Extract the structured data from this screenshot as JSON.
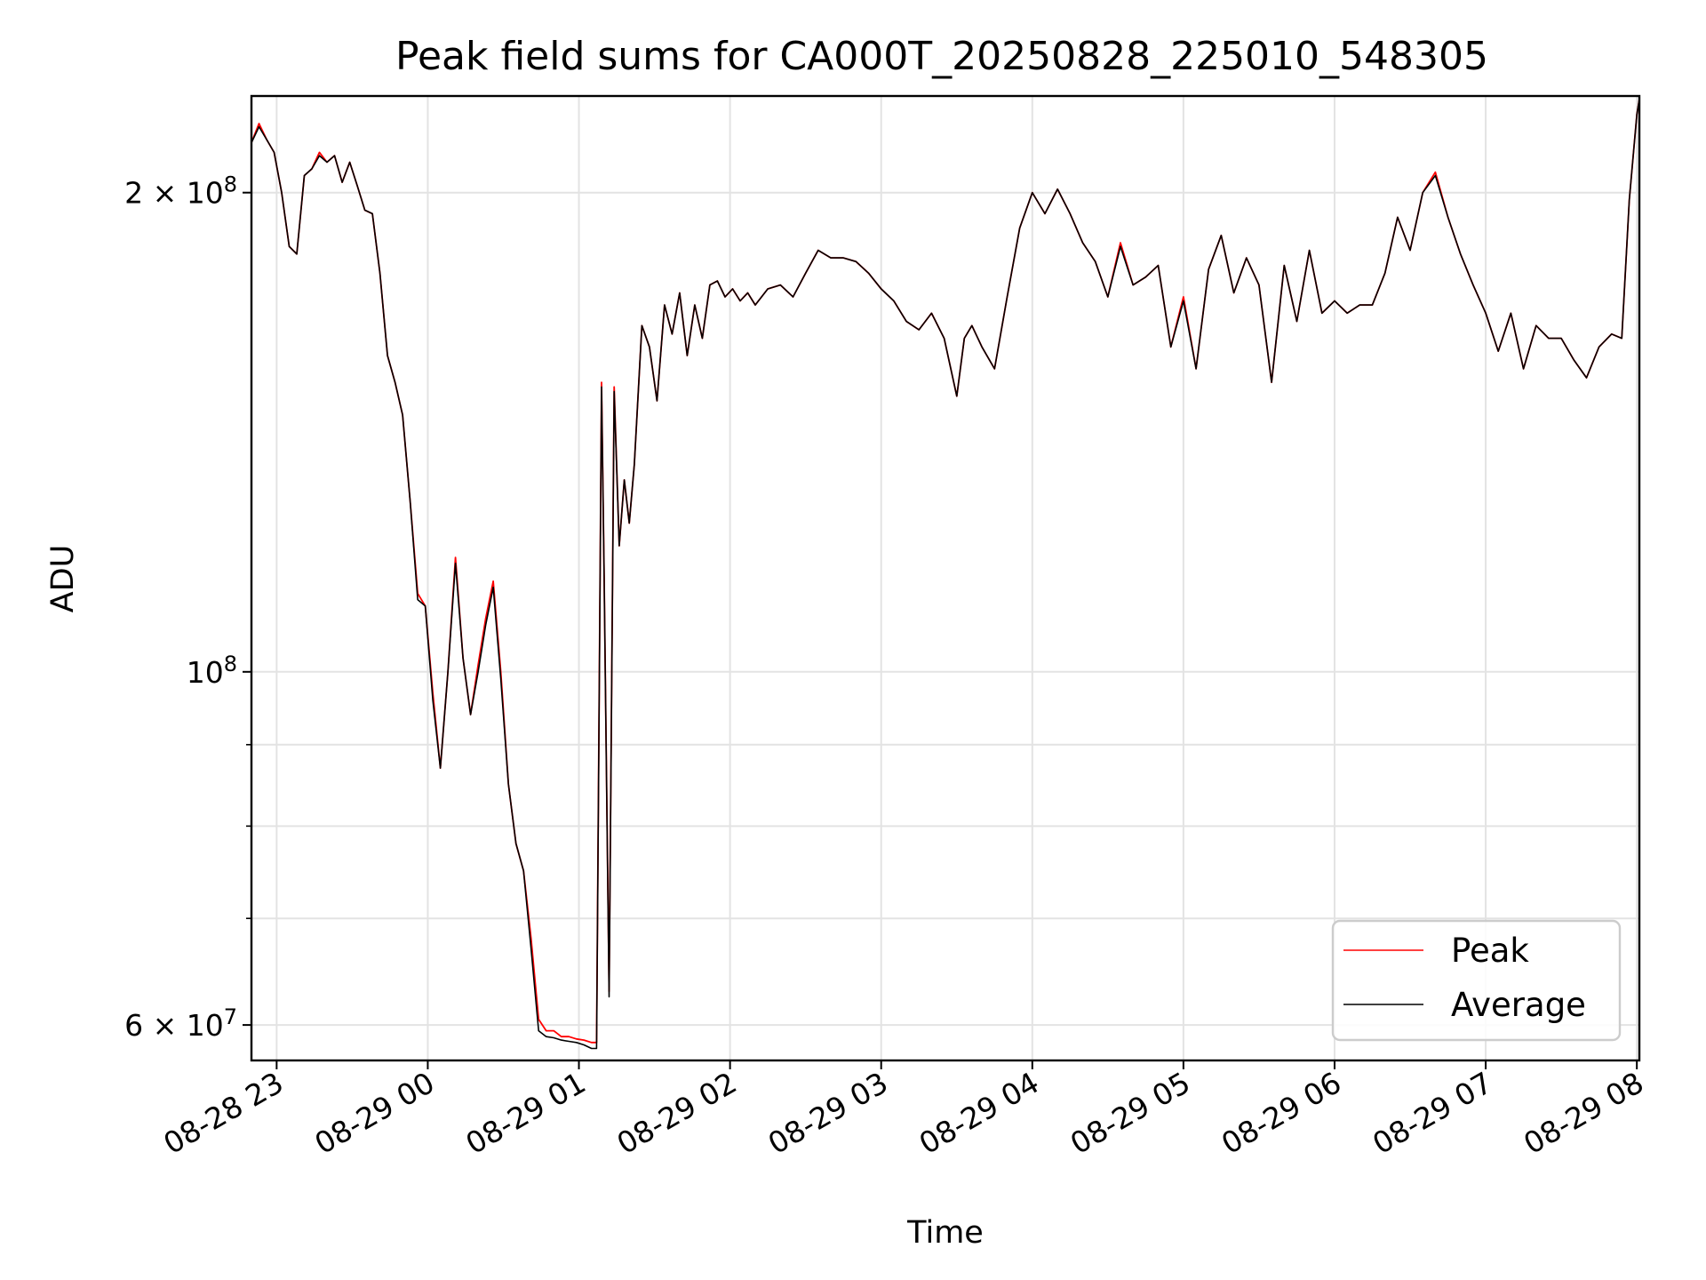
{
  "chart_data": {
    "type": "line",
    "title": "Peak field sums for CA000T_20250828_225010_548305",
    "xlabel": "Time",
    "ylabel": "ADU",
    "y_scale": "log",
    "grid": true,
    "legend_position": "lower-right",
    "xlim": [
      "2025-08-28 22:50",
      "2025-08-29 08:01"
    ],
    "ylim": [
      57000000,
      230000000
    ],
    "x_ticks": [
      "08-28 23",
      "08-29 00",
      "08-29 01",
      "08-29 02",
      "08-29 03",
      "08-29 04",
      "08-29 05",
      "08-29 06",
      "08-29 07",
      "08-29 08"
    ],
    "x_tick_values": [
      "2025-08-28 23:00",
      "2025-08-29 00:00",
      "2025-08-29 01:00",
      "2025-08-29 02:00",
      "2025-08-29 03:00",
      "2025-08-29 04:00",
      "2025-08-29 05:00",
      "2025-08-29 06:00",
      "2025-08-29 07:00",
      "2025-08-29 08:00"
    ],
    "y_major_ticks": [
      {
        "value": 200000000,
        "mantissa": "2",
        "exponent": "8"
      },
      {
        "value": 100000000,
        "mantissa": "",
        "exponent": "8"
      },
      {
        "value": 60000000,
        "mantissa": "6",
        "exponent": "7"
      }
    ],
    "y_minor_grid": [
      70000000,
      80000000,
      90000000
    ],
    "series": [
      {
        "name": "Peak",
        "color": "#ff0000",
        "x": [
          "2025-08-28 22:50",
          "2025-08-28 22:53",
          "2025-08-28 22:56",
          "2025-08-28 22:59",
          "2025-08-28 23:02",
          "2025-08-28 23:05",
          "2025-08-28 23:08",
          "2025-08-28 23:11",
          "2025-08-28 23:14",
          "2025-08-28 23:17",
          "2025-08-28 23:20",
          "2025-08-28 23:23",
          "2025-08-28 23:26",
          "2025-08-28 23:29",
          "2025-08-28 23:32",
          "2025-08-28 23:35",
          "2025-08-28 23:38",
          "2025-08-28 23:41",
          "2025-08-28 23:44",
          "2025-08-28 23:47",
          "2025-08-28 23:50",
          "2025-08-28 23:53",
          "2025-08-28 23:56",
          "2025-08-28 23:59",
          "2025-08-29 00:02",
          "2025-08-29 00:05",
          "2025-08-29 00:08",
          "2025-08-29 00:11",
          "2025-08-29 00:14",
          "2025-08-29 00:17",
          "2025-08-29 00:20",
          "2025-08-29 00:23",
          "2025-08-29 00:26",
          "2025-08-29 00:29",
          "2025-08-29 00:32",
          "2025-08-29 00:35",
          "2025-08-29 00:38",
          "2025-08-29 00:41",
          "2025-08-29 00:44",
          "2025-08-29 00:47",
          "2025-08-29 00:50",
          "2025-08-29 00:53",
          "2025-08-29 00:56",
          "2025-08-29 00:59",
          "2025-08-29 01:02",
          "2025-08-29 01:05",
          "2025-08-29 01:07",
          "2025-08-29 01:09",
          "2025-08-29 01:10",
          "2025-08-29 01:12",
          "2025-08-29 01:14",
          "2025-08-29 01:16",
          "2025-08-29 01:18",
          "2025-08-29 01:20",
          "2025-08-29 01:22",
          "2025-08-29 01:25",
          "2025-08-29 01:28",
          "2025-08-29 01:31",
          "2025-08-29 01:34",
          "2025-08-29 01:37",
          "2025-08-29 01:40",
          "2025-08-29 01:43",
          "2025-08-29 01:46",
          "2025-08-29 01:49",
          "2025-08-29 01:52",
          "2025-08-29 01:55",
          "2025-08-29 01:58",
          "2025-08-29 02:01",
          "2025-08-29 02:04",
          "2025-08-29 02:07",
          "2025-08-29 02:10",
          "2025-08-29 02:15",
          "2025-08-29 02:20",
          "2025-08-29 02:25",
          "2025-08-29 02:30",
          "2025-08-29 02:35",
          "2025-08-29 02:40",
          "2025-08-29 02:45",
          "2025-08-29 02:50",
          "2025-08-29 02:55",
          "2025-08-29 03:00",
          "2025-08-29 03:05",
          "2025-08-29 03:10",
          "2025-08-29 03:15",
          "2025-08-29 03:20",
          "2025-08-29 03:25",
          "2025-08-29 03:30",
          "2025-08-29 03:33",
          "2025-08-29 03:36",
          "2025-08-29 03:40",
          "2025-08-29 03:45",
          "2025-08-29 03:50",
          "2025-08-29 03:55",
          "2025-08-29 04:00",
          "2025-08-29 04:05",
          "2025-08-29 04:10",
          "2025-08-29 04:15",
          "2025-08-29 04:20",
          "2025-08-29 04:25",
          "2025-08-29 04:30",
          "2025-08-29 04:35",
          "2025-08-29 04:40",
          "2025-08-29 04:45",
          "2025-08-29 04:50",
          "2025-08-29 04:55",
          "2025-08-29 05:00",
          "2025-08-29 05:05",
          "2025-08-29 05:10",
          "2025-08-29 05:15",
          "2025-08-29 05:20",
          "2025-08-29 05:25",
          "2025-08-29 05:30",
          "2025-08-29 05:35",
          "2025-08-29 05:40",
          "2025-08-29 05:45",
          "2025-08-29 05:50",
          "2025-08-29 05:55",
          "2025-08-29 06:00",
          "2025-08-29 06:05",
          "2025-08-29 06:10",
          "2025-08-29 06:15",
          "2025-08-29 06:20",
          "2025-08-29 06:25",
          "2025-08-29 06:30",
          "2025-08-29 06:35",
          "2025-08-29 06:40",
          "2025-08-29 06:45",
          "2025-08-29 06:50",
          "2025-08-29 06:55",
          "2025-08-29 07:00",
          "2025-08-29 07:05",
          "2025-08-29 07:10",
          "2025-08-29 07:15",
          "2025-08-29 07:20",
          "2025-08-29 07:25",
          "2025-08-29 07:30",
          "2025-08-29 07:35",
          "2025-08-29 07:40",
          "2025-08-29 07:45",
          "2025-08-29 07:50",
          "2025-08-29 07:54",
          "2025-08-29 07:57",
          "2025-08-29 08:00",
          "2025-08-29 08:01"
        ],
        "values": [
          215000000,
          221000000,
          216000000,
          212000000,
          200000000,
          185000000,
          183000000,
          205000000,
          207000000,
          212000000,
          209000000,
          211000000,
          203000000,
          209000000,
          202000000,
          195000000,
          194000000,
          178000000,
          158000000,
          152000000,
          145000000,
          128000000,
          112000000,
          110000000,
          97000000,
          87000000,
          100000000,
          118000000,
          102000000,
          94000000,
          101000000,
          108000000,
          114000000,
          100000000,
          85000000,
          78000000,
          75000000,
          68000000,
          60500000,
          59500000,
          59500000,
          59000000,
          59000000,
          58800000,
          58700000,
          58500000,
          58500000,
          152000000,
          115000000,
          63000000,
          151000000,
          120000000,
          132000000,
          124000000,
          135000000,
          165000000,
          160000000,
          148000000,
          170000000,
          163000000,
          173000000,
          158000000,
          170000000,
          162000000,
          175000000,
          176000000,
          172000000,
          174000000,
          171000000,
          173000000,
          170000000,
          174000000,
          175000000,
          172000000,
          178000000,
          184000000,
          182000000,
          182000000,
          181000000,
          178000000,
          174000000,
          171000000,
          166000000,
          164000000,
          168000000,
          162000000,
          149000000,
          162000000,
          165000000,
          160000000,
          155000000,
          172000000,
          190000000,
          200000000,
          194000000,
          201000000,
          194000000,
          186000000,
          181000000,
          172000000,
          186000000,
          175000000,
          177000000,
          180000000,
          160000000,
          172000000,
          155000000,
          179000000,
          188000000,
          173000000,
          182000000,
          175000000,
          152000000,
          180000000,
          166000000,
          184000000,
          168000000,
          171000000,
          168000000,
          170000000,
          170000000,
          178000000,
          193000000,
          184000000,
          200000000,
          206000000,
          193000000,
          183000000,
          175000000,
          168000000,
          159000000,
          168000000,
          155000000,
          165000000,
          162000000,
          162000000,
          157000000,
          153000000,
          160000000,
          163000000,
          162000000,
          198000000,
          224000000,
          229000000
        ]
      },
      {
        "name": "Average",
        "color": "#000000",
        "x": [
          "2025-08-28 22:50",
          "2025-08-28 22:53",
          "2025-08-28 22:56",
          "2025-08-28 22:59",
          "2025-08-28 23:02",
          "2025-08-28 23:05",
          "2025-08-28 23:08",
          "2025-08-28 23:11",
          "2025-08-28 23:14",
          "2025-08-28 23:17",
          "2025-08-28 23:20",
          "2025-08-28 23:23",
          "2025-08-28 23:26",
          "2025-08-28 23:29",
          "2025-08-28 23:32",
          "2025-08-28 23:35",
          "2025-08-28 23:38",
          "2025-08-28 23:41",
          "2025-08-28 23:44",
          "2025-08-28 23:47",
          "2025-08-28 23:50",
          "2025-08-28 23:53",
          "2025-08-28 23:56",
          "2025-08-28 23:59",
          "2025-08-29 00:02",
          "2025-08-29 00:05",
          "2025-08-29 00:08",
          "2025-08-29 00:11",
          "2025-08-29 00:14",
          "2025-08-29 00:17",
          "2025-08-29 00:20",
          "2025-08-29 00:23",
          "2025-08-29 00:26",
          "2025-08-29 00:29",
          "2025-08-29 00:32",
          "2025-08-29 00:35",
          "2025-08-29 00:38",
          "2025-08-29 00:41",
          "2025-08-29 00:44",
          "2025-08-29 00:47",
          "2025-08-29 00:50",
          "2025-08-29 00:53",
          "2025-08-29 00:56",
          "2025-08-29 00:59",
          "2025-08-29 01:02",
          "2025-08-29 01:05",
          "2025-08-29 01:07",
          "2025-08-29 01:09",
          "2025-08-29 01:10",
          "2025-08-29 01:12",
          "2025-08-29 01:14",
          "2025-08-29 01:16",
          "2025-08-29 01:18",
          "2025-08-29 01:20",
          "2025-08-29 01:22",
          "2025-08-29 01:25",
          "2025-08-29 01:28",
          "2025-08-29 01:31",
          "2025-08-29 01:34",
          "2025-08-29 01:37",
          "2025-08-29 01:40",
          "2025-08-29 01:43",
          "2025-08-29 01:46",
          "2025-08-29 01:49",
          "2025-08-29 01:52",
          "2025-08-29 01:55",
          "2025-08-29 01:58",
          "2025-08-29 02:01",
          "2025-08-29 02:04",
          "2025-08-29 02:07",
          "2025-08-29 02:10",
          "2025-08-29 02:15",
          "2025-08-29 02:20",
          "2025-08-29 02:25",
          "2025-08-29 02:30",
          "2025-08-29 02:35",
          "2025-08-29 02:40",
          "2025-08-29 02:45",
          "2025-08-29 02:50",
          "2025-08-29 02:55",
          "2025-08-29 03:00",
          "2025-08-29 03:05",
          "2025-08-29 03:10",
          "2025-08-29 03:15",
          "2025-08-29 03:20",
          "2025-08-29 03:25",
          "2025-08-29 03:30",
          "2025-08-29 03:33",
          "2025-08-29 03:36",
          "2025-08-29 03:40",
          "2025-08-29 03:45",
          "2025-08-29 03:50",
          "2025-08-29 03:55",
          "2025-08-29 04:00",
          "2025-08-29 04:05",
          "2025-08-29 04:10",
          "2025-08-29 04:15",
          "2025-08-29 04:20",
          "2025-08-29 04:25",
          "2025-08-29 04:30",
          "2025-08-29 04:35",
          "2025-08-29 04:40",
          "2025-08-29 04:45",
          "2025-08-29 04:50",
          "2025-08-29 04:55",
          "2025-08-29 05:00",
          "2025-08-29 05:05",
          "2025-08-29 05:10",
          "2025-08-29 05:15",
          "2025-08-29 05:20",
          "2025-08-29 05:25",
          "2025-08-29 05:30",
          "2025-08-29 05:35",
          "2025-08-29 05:40",
          "2025-08-29 05:45",
          "2025-08-29 05:50",
          "2025-08-29 05:55",
          "2025-08-29 06:00",
          "2025-08-29 06:05",
          "2025-08-29 06:10",
          "2025-08-29 06:15",
          "2025-08-29 06:20",
          "2025-08-29 06:25",
          "2025-08-29 06:30",
          "2025-08-29 06:35",
          "2025-08-29 06:40",
          "2025-08-29 06:45",
          "2025-08-29 06:50",
          "2025-08-29 06:55",
          "2025-08-29 07:00",
          "2025-08-29 07:05",
          "2025-08-29 07:10",
          "2025-08-29 07:15",
          "2025-08-29 07:20",
          "2025-08-29 07:25",
          "2025-08-29 07:30",
          "2025-08-29 07:35",
          "2025-08-29 07:40",
          "2025-08-29 07:45",
          "2025-08-29 07:50",
          "2025-08-29 07:54",
          "2025-08-29 07:57",
          "2025-08-29 08:00",
          "2025-08-29 08:01"
        ],
        "values": [
          215000000,
          220000000,
          216000000,
          212000000,
          200000000,
          185000000,
          183000000,
          205000000,
          207000000,
          211000000,
          209000000,
          211000000,
          203000000,
          209000000,
          202000000,
          195000000,
          194000000,
          178000000,
          158000000,
          152000000,
          145000000,
          128000000,
          111000000,
          110000000,
          96000000,
          87000000,
          100000000,
          117000000,
          102000000,
          94000000,
          100000000,
          107000000,
          113000000,
          99000000,
          85000000,
          78000000,
          75000000,
          67000000,
          59500000,
          59000000,
          58900000,
          58700000,
          58600000,
          58500000,
          58300000,
          58000000,
          58000000,
          151000000,
          115000000,
          62500000,
          150000000,
          120000000,
          132000000,
          124000000,
          135000000,
          165000000,
          160000000,
          148000000,
          170000000,
          163000000,
          173000000,
          158000000,
          170000000,
          162000000,
          175000000,
          176000000,
          172000000,
          174000000,
          171000000,
          173000000,
          170000000,
          174000000,
          175000000,
          172000000,
          178000000,
          184000000,
          182000000,
          182000000,
          181000000,
          178000000,
          174000000,
          171000000,
          166000000,
          164000000,
          168000000,
          162000000,
          149000000,
          162000000,
          165000000,
          160000000,
          155000000,
          172000000,
          190000000,
          200000000,
          194000000,
          201000000,
          194000000,
          186000000,
          181000000,
          172000000,
          185000000,
          175000000,
          177000000,
          180000000,
          160000000,
          171000000,
          155000000,
          179000000,
          188000000,
          173000000,
          182000000,
          175000000,
          152000000,
          180000000,
          166000000,
          184000000,
          168000000,
          171000000,
          168000000,
          170000000,
          170000000,
          178000000,
          193000000,
          184000000,
          200000000,
          205000000,
          193000000,
          183000000,
          175000000,
          168000000,
          159000000,
          168000000,
          155000000,
          165000000,
          162000000,
          162000000,
          157000000,
          153000000,
          160000000,
          163000000,
          162000000,
          198000000,
          224000000,
          229000000
        ]
      }
    ]
  }
}
